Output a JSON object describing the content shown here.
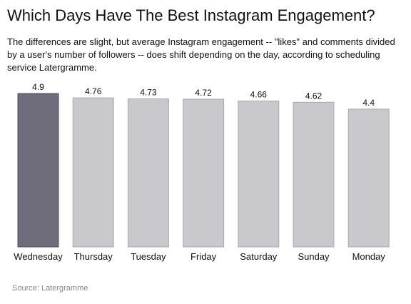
{
  "header": {
    "title": "Which Days Have The Best Instagram Engagement?",
    "subtitle": "The differences are slight, but average Instagram engagement -- \"likes\" and comments divided by a user's number of followers -- does shift depending on the day, according to scheduling service Latergramme."
  },
  "footer": {
    "source": "Source: Latergramme"
  },
  "colors": {
    "highlight": "#6f6c7c",
    "bar": "#c9c8cd",
    "bar_border": "#a9a8ae"
  },
  "chart_data": {
    "type": "bar",
    "categories": [
      "Wednesday",
      "Thursday",
      "Tuesday",
      "Friday",
      "Saturday",
      "Sunday",
      "Monday"
    ],
    "values": [
      4.9,
      4.76,
      4.73,
      4.72,
      4.66,
      4.62,
      4.4
    ],
    "ylim": [
      0,
      4.9
    ],
    "highlight_category": "Wednesday",
    "grid": false,
    "legend": "none",
    "xlabel": "",
    "ylabel": ""
  }
}
